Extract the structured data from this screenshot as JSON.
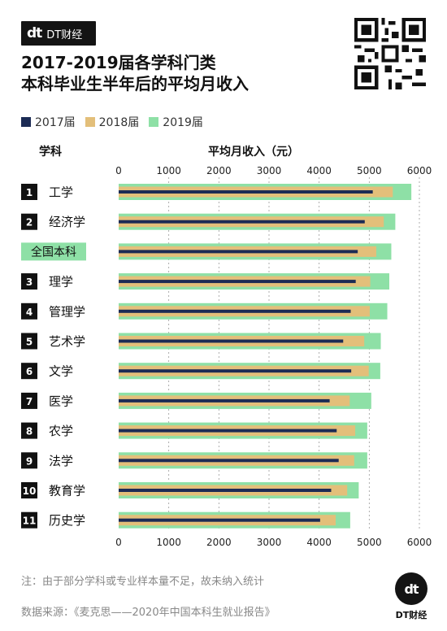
{
  "brand": {
    "mark": "dt",
    "name": "DT财经"
  },
  "title_line1": "2017-2019届各学科门类",
  "title_line2": "本科毕业生半年后的平均月收入",
  "header": {
    "subject": "学科",
    "income": "平均月收入（元）"
  },
  "note": "注：由于部分学科或专业样本量不足，故未纳入统计",
  "source": "数据来源：《麦克思——2020年中国本科生就业报告》",
  "bottom_logo": {
    "mark": "dt",
    "text": "DT财经"
  },
  "colors": {
    "y2017": "#1c2b55",
    "y2018": "#e3bf7a",
    "y2019": "#8ee0a6",
    "badge": "#111111",
    "highlight": "#8ee0a6"
  },
  "chart_data": {
    "type": "bar",
    "orientation": "horizontal",
    "categories": [
      "工学",
      "经济学",
      "全国本科",
      "理学",
      "管理学",
      "艺术学",
      "文学",
      "医学",
      "农学",
      "法学",
      "教育学",
      "历史学"
    ],
    "ranks": [
      "1",
      "2",
      "",
      "3",
      "4",
      "5",
      "6",
      "7",
      "8",
      "9",
      "10",
      "11"
    ],
    "series": [
      {
        "name": "2017届",
        "values": [
          5070,
          4910,
          4770,
          4730,
          4630,
          4480,
          4640,
          4210,
          4350,
          4390,
          4240,
          4020
        ]
      },
      {
        "name": "2018届",
        "values": [
          5470,
          5290,
          5140,
          5020,
          5010,
          4900,
          4990,
          4610,
          4720,
          4700,
          4560,
          4330
        ]
      },
      {
        "name": "2019届",
        "values": [
          5840,
          5520,
          5440,
          5400,
          5360,
          5230,
          5220,
          5040,
          4960,
          4960,
          4790,
          4620
        ]
      }
    ],
    "xticks": [
      0,
      1000,
      2000,
      3000,
      4000,
      5000,
      6000
    ],
    "xlim": [
      0,
      6000
    ],
    "legend_position": "top-left",
    "grid": true
  }
}
